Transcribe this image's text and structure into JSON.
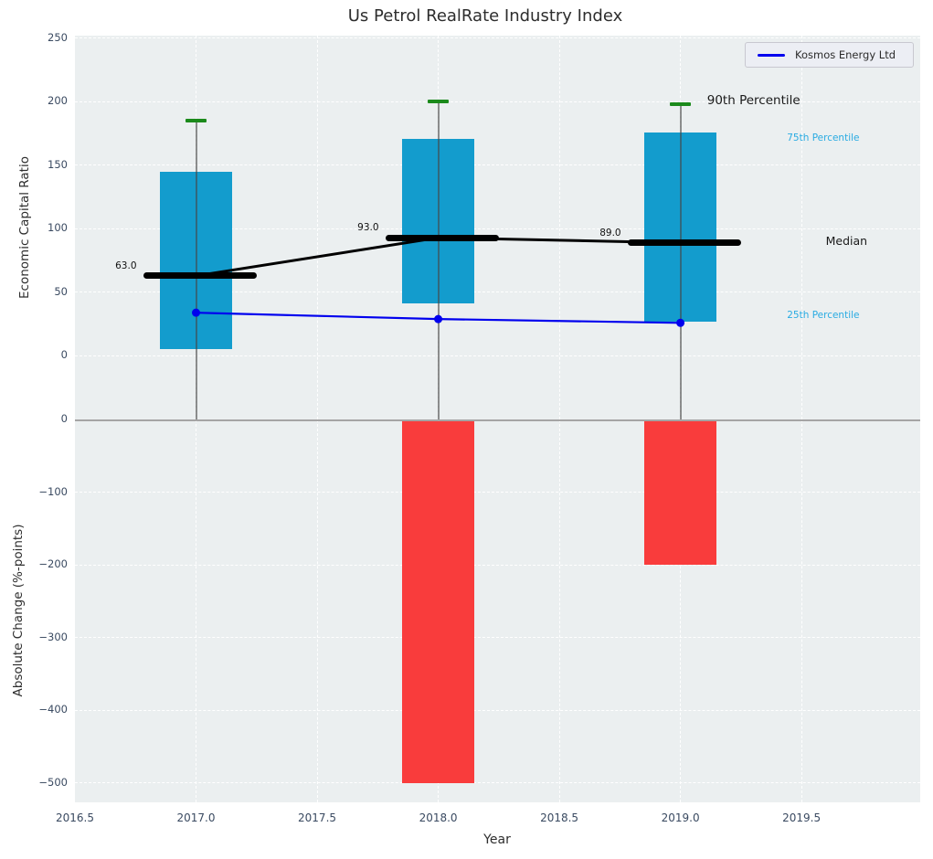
{
  "title": "Us Petrol RealRate Industry Index",
  "legend": {
    "label": "Kosmos Energy Ltd",
    "line_color": "#0000ee"
  },
  "axis_labels": {
    "top_y": "Economic Capital Ratio",
    "bottom_y": "Absolute Change (%-points)",
    "x": "Year"
  },
  "colors": {
    "box_fill": "#139ccd",
    "cap_green": "#1b8a1b",
    "bar_red": "#f93c3c",
    "line_blue": "#0000ee",
    "median_black": "#000000",
    "axes_background": "#ebeff0",
    "grid": "#ffffff",
    "tick_label": "#3a4a61",
    "percentile_label_blue": "#29abe2",
    "annotation_dark": "#1a1a1a",
    "separator_grey": "#a5a5a5"
  },
  "chart_data": [
    {
      "type": "box",
      "subplot": "top",
      "title": "Us Petrol RealRate Industry Index",
      "ylabel": "Economic Capital Ratio",
      "x": [
        2017,
        2018,
        2019
      ],
      "p90": [
        185,
        200,
        198
      ],
      "p75": [
        145,
        171,
        176
      ],
      "median": [
        63.0,
        93.0,
        89.0
      ],
      "median_labels": [
        "63.0",
        "93.0",
        "89.0"
      ],
      "p25": [
        5,
        41,
        27
      ],
      "series": [
        {
          "name": "Kosmos Energy Ltd",
          "values": [
            34,
            29,
            26
          ],
          "color": "#0000ee"
        }
      ],
      "annotations": [
        {
          "text": "90th Percentile",
          "x": 2019.11,
          "y": 200,
          "color": "#1a1a1a",
          "size": 13.5
        },
        {
          "text": "75th Percentile",
          "x": 2019.44,
          "y": 170,
          "color": "#29abe2",
          "size": 10.5
        },
        {
          "text": "Median",
          "x": 2019.6,
          "y": 89.5,
          "color": "#1a1a1a",
          "size": 12.5
        },
        {
          "text": "25th Percentile",
          "x": 2019.44,
          "y": 30.5,
          "color": "#29abe2",
          "size": 10.5
        }
      ],
      "ylim": [
        -50,
        252
      ],
      "xlim": [
        2016.5,
        2019.99
      ],
      "ytick_values": [
        0,
        50,
        100,
        150,
        200,
        250
      ],
      "ytick_labels": [
        "0",
        "50",
        "100",
        "150",
        "200",
        "250"
      ],
      "xtick_values": [
        2016.5,
        2017.0,
        2017.5,
        2018.0,
        2018.5,
        2019.0,
        2019.5
      ],
      "xtick_labels": [
        "2016.5",
        "2017.0",
        "2017.5",
        "2018.0",
        "2018.5",
        "2019.0",
        "2019.5"
      ],
      "grid": true,
      "legend_position": "upper right",
      "box_width_years": 0.3,
      "median_width_years": 0.468,
      "cap_width_years": 0.085
    },
    {
      "type": "bar",
      "subplot": "bottom",
      "xlabel": "Year",
      "ylabel": "Absolute Change (%-points)",
      "categories": [
        2017,
        2018,
        2019
      ],
      "values": [
        0,
        -500,
        -200
      ],
      "ylim": [
        -527,
        0
      ],
      "xlim": [
        2016.5,
        2019.99
      ],
      "ytick_values": [
        0,
        -100,
        -200,
        -300,
        -400,
        -500
      ],
      "ytick_labels": [
        "0",
        "−100",
        "−200",
        "−300",
        "−400",
        "−500"
      ],
      "xtick_values": [
        2016.5,
        2017.0,
        2017.5,
        2018.0,
        2018.5,
        2019.0,
        2019.5
      ],
      "xtick_labels": [
        "2016.5",
        "2017.0",
        "2017.5",
        "2018.0",
        "2018.5",
        "2019.0",
        "2019.5"
      ],
      "grid": true,
      "bar_width_years": 0.3,
      "bar_color": "#f93c3c"
    }
  ]
}
